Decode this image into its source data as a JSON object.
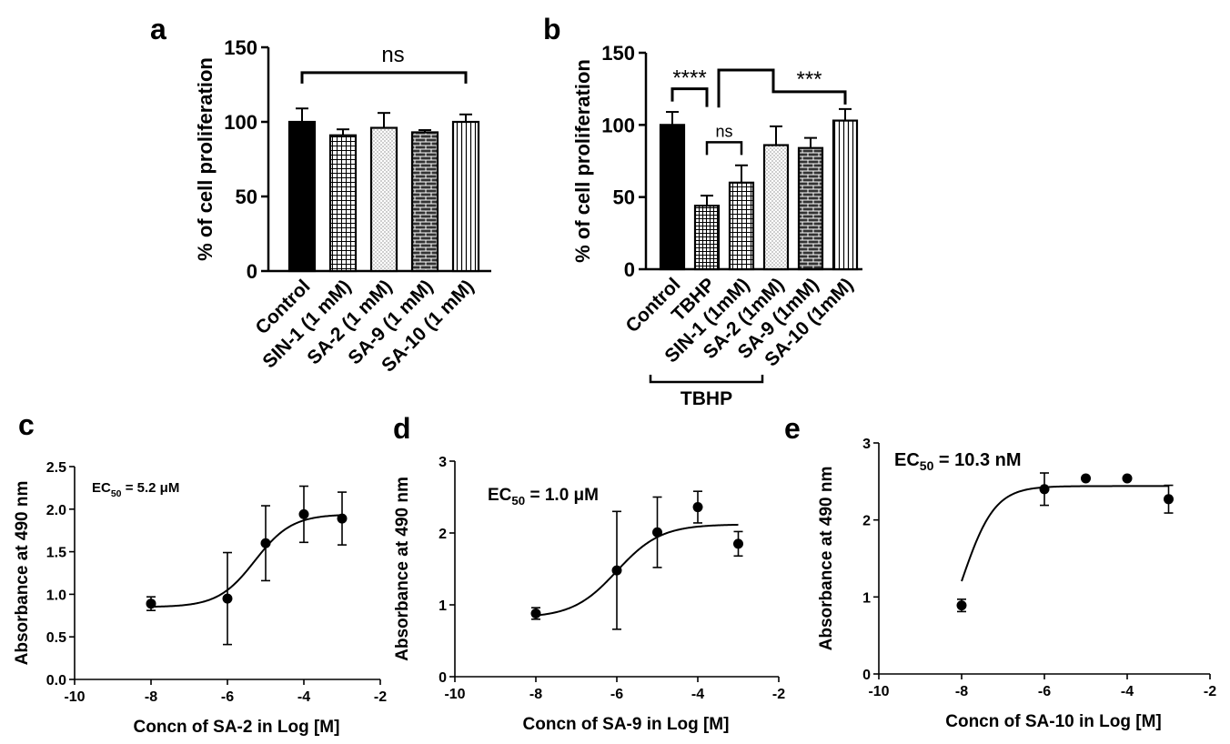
{
  "chart_data": [
    {
      "panel": "a",
      "type": "bar",
      "ylabel": "% of cell proliferation",
      "ylim": [
        0,
        150
      ],
      "yticks": [
        0,
        50,
        100,
        150
      ],
      "categories": [
        "Control",
        "SIN-1 (1 mM)",
        "SA-2 (1 mM)",
        "SA-9 (1 mM)",
        "SA-10 (1 mM)"
      ],
      "values": [
        100,
        91,
        96,
        93,
        100
      ],
      "errors": [
        9,
        4,
        10,
        1.5,
        5
      ],
      "patterns": [
        "solid",
        "grid",
        "dots",
        "brick",
        "vlines"
      ],
      "significance": [
        {
          "from": 0,
          "to": 4,
          "label": "ns"
        }
      ]
    },
    {
      "panel": "b",
      "type": "bar",
      "ylabel": "% of cell proliferation",
      "ylim": [
        0,
        150
      ],
      "yticks": [
        0,
        50,
        100,
        150
      ],
      "categories": [
        "Control",
        "TBHP",
        "SIN-1 (1mM)",
        "SA-2 (1mM)",
        "SA-9 (1mM)",
        "SA-10 (1mM)"
      ],
      "values": [
        100,
        44,
        60,
        86,
        84,
        103
      ],
      "errors": [
        9,
        7,
        12,
        13,
        7,
        8
      ],
      "patterns": [
        "solid",
        "hgrid",
        "grid",
        "dots",
        "brick",
        "vlines"
      ],
      "significance": [
        {
          "from": 0,
          "to": 1,
          "label": "****"
        },
        {
          "from": 1,
          "to": 2,
          "label": "ns"
        },
        {
          "from": 1,
          "to": 5,
          "label": "***"
        }
      ],
      "group_label": {
        "label": "TBHP",
        "from": 2,
        "to": 5
      }
    },
    {
      "panel": "c",
      "type": "scatter",
      "ylabel": "Absorbance at 490 nm",
      "xlabel": "Concn of SA-2 in Log [M]",
      "annotation": {
        "prefix": "EC",
        "subscript": "50",
        "suffix": " = 5.2 μM"
      },
      "xlim": [
        -10,
        -2
      ],
      "xticks": [
        -10,
        -8,
        -6,
        -4,
        -2
      ],
      "ylim": [
        0,
        2.5
      ],
      "yticks": [
        0.0,
        0.5,
        1.0,
        1.5,
        2.0,
        2.5
      ],
      "ytick_labels": [
        "0.0",
        "0.5",
        "1.0",
        "1.5",
        "2.0",
        "2.5"
      ],
      "x": [
        -8,
        -6,
        -5,
        -4,
        -3
      ],
      "y": [
        0.89,
        0.95,
        1.6,
        1.94,
        1.89
      ],
      "errors": [
        0.08,
        0.54,
        0.44,
        0.33,
        0.31
      ],
      "fit": {
        "bottom": 0.85,
        "top": 1.94,
        "logEC50": -5.28,
        "hill": 0.9
      }
    },
    {
      "panel": "d",
      "type": "scatter",
      "ylabel": "Absorbance at 490 nm",
      "xlabel": "Concn of SA-9 in Log [M]",
      "annotation": {
        "prefix": "EC",
        "subscript": "50",
        "suffix": " = 1.0 μM"
      },
      "xlim": [
        -10,
        -2
      ],
      "xticks": [
        -10,
        -8,
        -6,
        -4,
        -2
      ],
      "ylim": [
        0,
        3
      ],
      "yticks": [
        0,
        1,
        2,
        3
      ],
      "ytick_labels": [
        "0",
        "1",
        "2",
        "3"
      ],
      "x": [
        -8,
        -6,
        -5,
        -4,
        -3
      ],
      "y": [
        0.88,
        1.48,
        2.01,
        2.36,
        1.85
      ],
      "errors": [
        0.08,
        0.82,
        0.49,
        0.22,
        0.17
      ],
      "fit": {
        "bottom": 0.82,
        "top": 2.12,
        "logEC50": -6.0,
        "hill": 0.8
      }
    },
    {
      "panel": "e",
      "type": "scatter",
      "ylabel": "Absorbance at 490 nm",
      "xlabel": "Concn of SA-10 in Log [M]",
      "annotation": {
        "prefix": "EC",
        "subscript": "50",
        "suffix": " = 10.3 nM"
      },
      "xlim": [
        -10,
        -2
      ],
      "xticks": [
        -10,
        -8,
        -6,
        -4,
        -2
      ],
      "ylim": [
        0,
        3
      ],
      "yticks": [
        0,
        1,
        2,
        3
      ],
      "ytick_labels": [
        "0",
        "1",
        "2",
        "3"
      ],
      "x": [
        -8,
        -6,
        -5,
        -4,
        -3
      ],
      "y": [
        0.89,
        2.4,
        2.54,
        2.54,
        2.27
      ],
      "errors": [
        0.08,
        0.21,
        0,
        0,
        0.18
      ],
      "fit": {
        "bottom": 0.0,
        "top": 2.44,
        "logEC50": -7.99,
        "hill": 1.1
      }
    }
  ]
}
